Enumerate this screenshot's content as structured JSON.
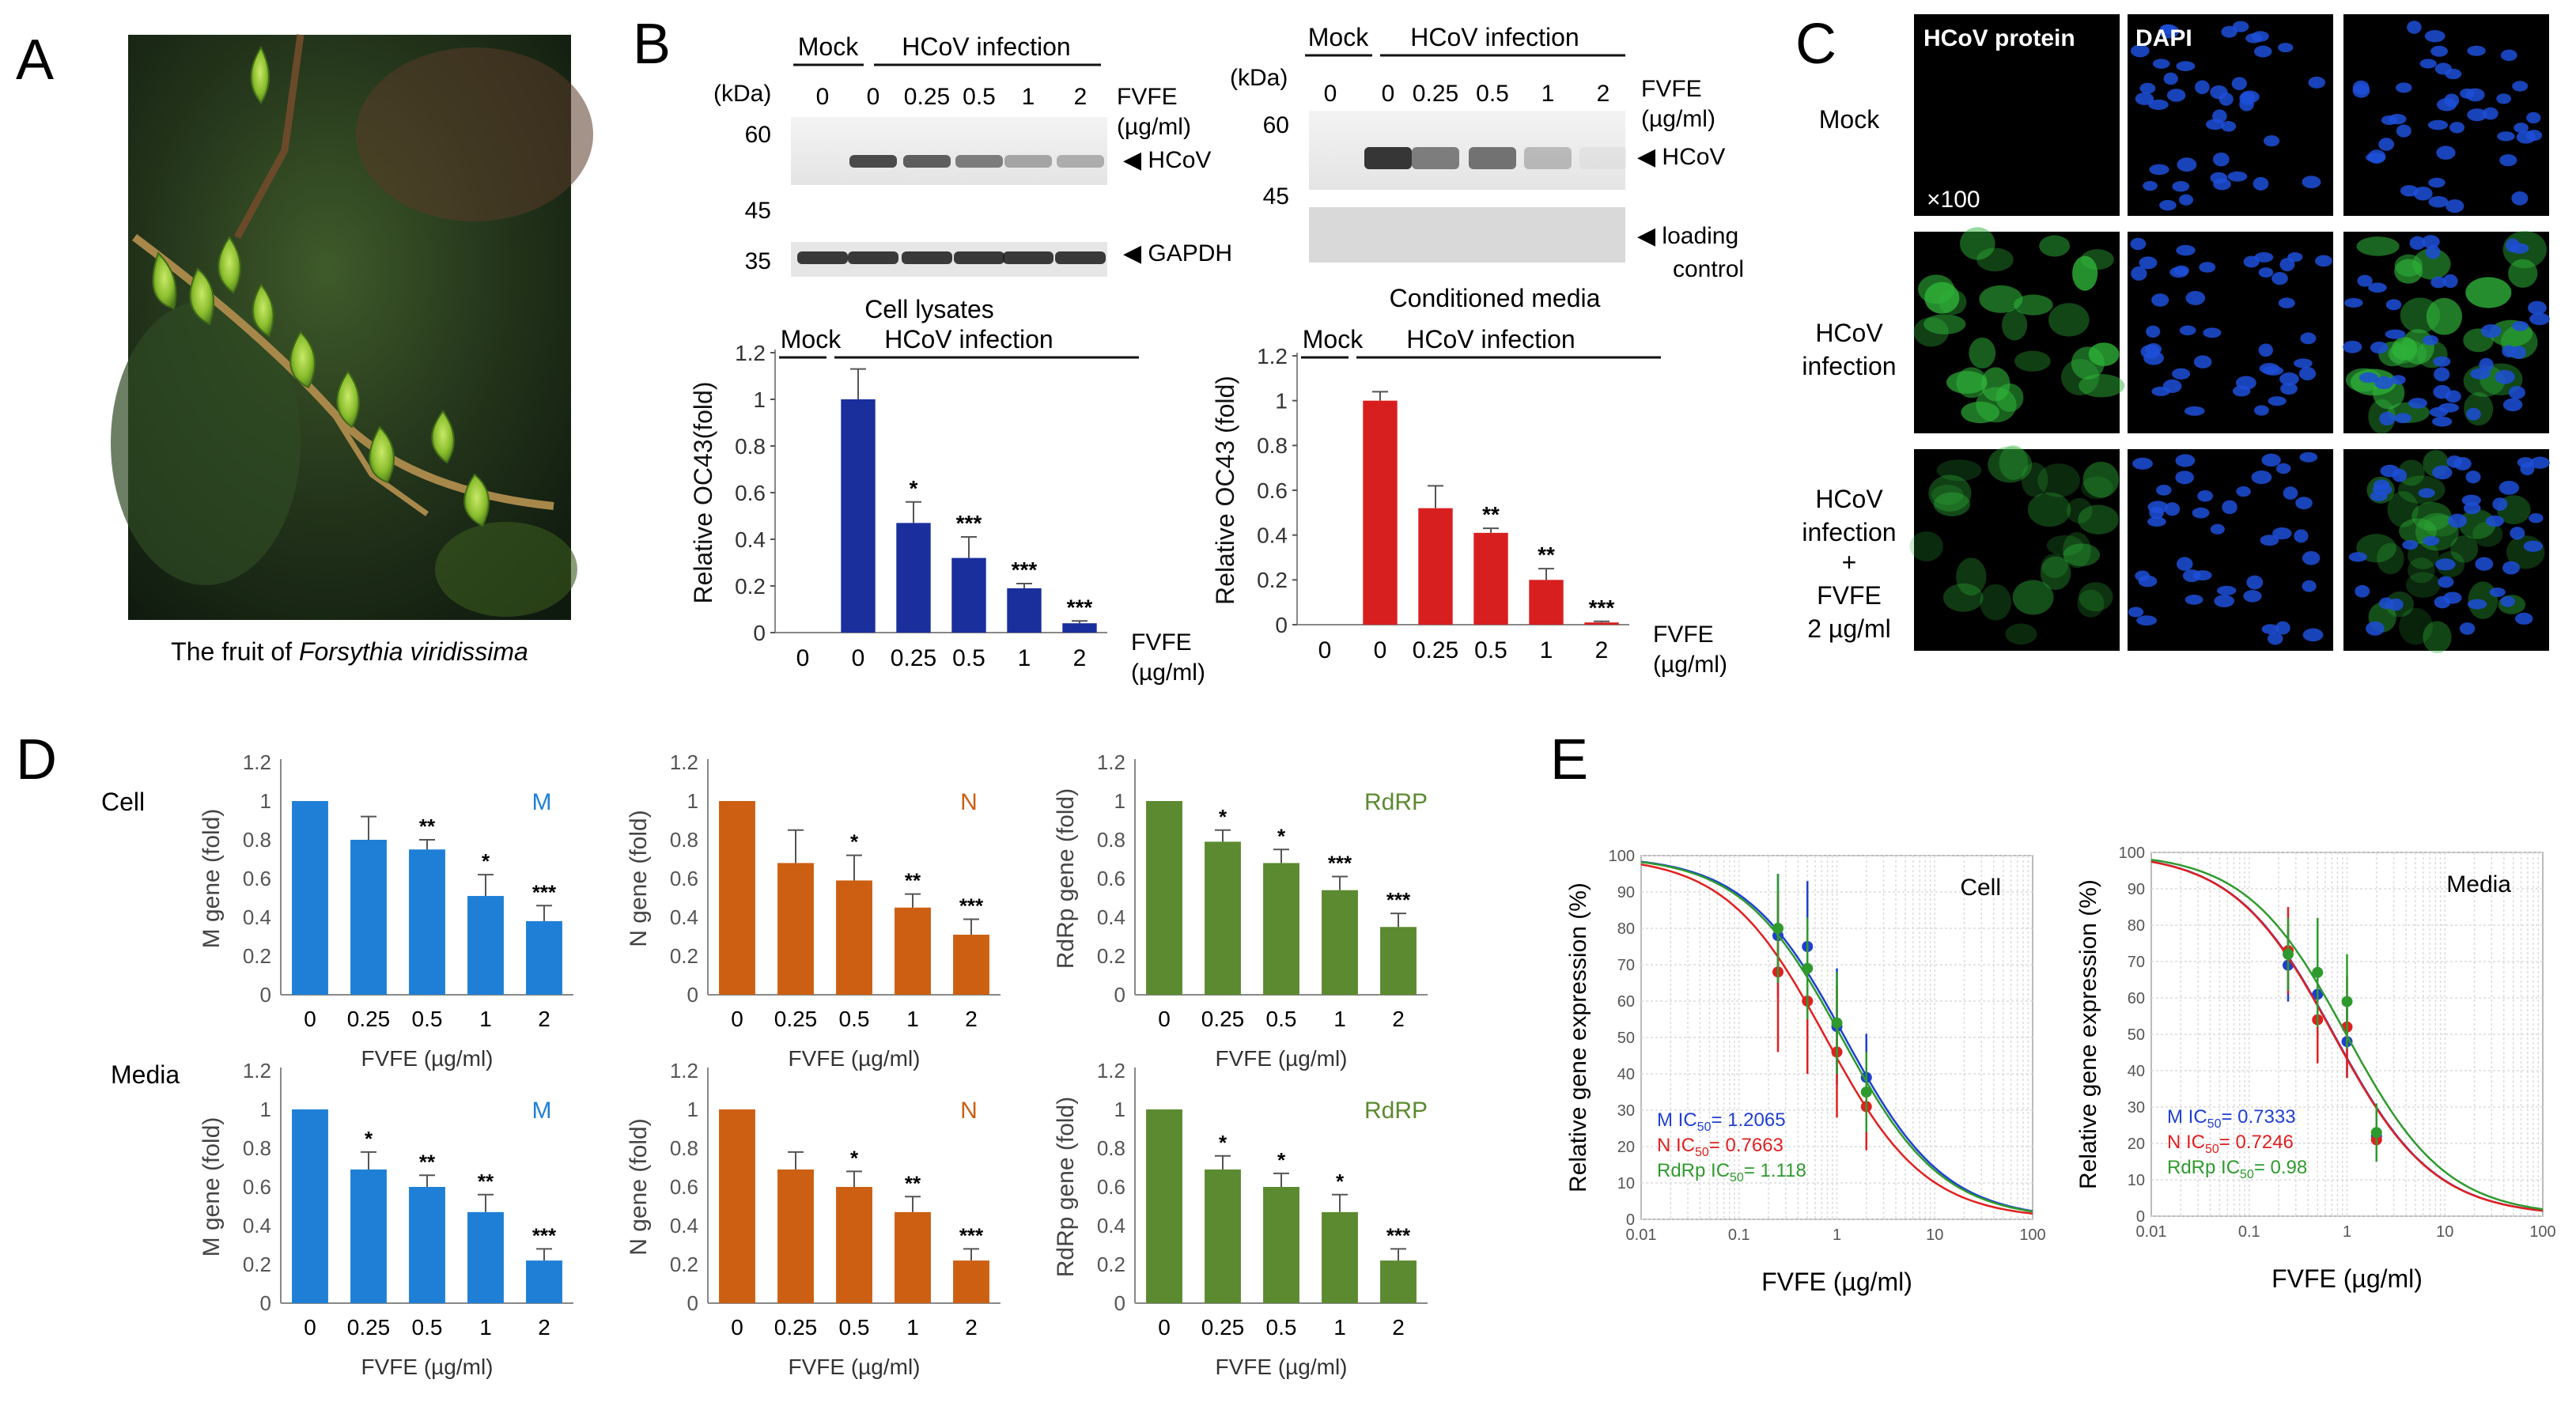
{
  "panel_letters": {
    "a": "A",
    "b": "B",
    "c": "C",
    "d": "D",
    "e": "E"
  },
  "panel_a": {
    "caption_prefix": "The fruit of ",
    "caption_species": "Forsythia viridissima"
  },
  "panel_b": {
    "mock": "Mock",
    "infection": "HCoV infection",
    "kda": "(kDa)",
    "fvfe": "FVFE",
    "unit": "(µg/ml)",
    "doses": [
      "0",
      "0",
      "0.25",
      "0.5",
      "1",
      "2"
    ],
    "blot_left": {
      "markers": [
        "60",
        "45",
        "35"
      ],
      "band_top": "◀ HCoV",
      "band_bottom": "◀ GAPDH",
      "caption": "Cell lysates"
    },
    "blot_right": {
      "markers": [
        "60",
        "45"
      ],
      "band_top": "◀ HCoV",
      "band_bottom_1": "◀ loading",
      "band_bottom_2": "control",
      "caption": "Conditioned media"
    }
  },
  "panel_c": {
    "col_headers": [
      "HCoV protein",
      "DAPI"
    ],
    "rows": [
      [
        "Mock"
      ],
      [
        "HCoV",
        "infection"
      ],
      [
        "HCoV",
        "infection",
        "+",
        "FVFE",
        "2 µg/ml"
      ]
    ],
    "magnification": "×100",
    "green": "#2fb43a",
    "blue": "#1d4fd8"
  },
  "chart_data": [
    {
      "id": "b_left",
      "type": "bar",
      "title": "",
      "ylabel": "Relative OC43(fold)",
      "xlabel": "FVFE",
      "xunit": "(µg/ml)",
      "categories": [
        "0",
        "0",
        "0.25",
        "0.5",
        "1",
        "2"
      ],
      "values": [
        0,
        1.0,
        0.47,
        0.32,
        0.19,
        0.04
      ],
      "errors": [
        0,
        0.13,
        0.09,
        0.09,
        0.02,
        0.01
      ],
      "significance": [
        "",
        "",
        "*",
        "***",
        "***",
        "***"
      ],
      "ylim": [
        0,
        1.2
      ],
      "yticks": [
        "0",
        "0.2",
        "0.4",
        "0.6",
        "0.8",
        "1",
        "1.2"
      ],
      "color": "#1a2f9c",
      "group_labels": {
        "mock": "Mock",
        "infection": "HCoV infection"
      }
    },
    {
      "id": "b_right",
      "type": "bar",
      "title": "",
      "ylabel": "Relative OC43 (fold)",
      "xlabel": "FVFE",
      "xunit": "(µg/ml)",
      "categories": [
        "0",
        "0",
        "0.25",
        "0.5",
        "1",
        "2"
      ],
      "values": [
        0,
        1.0,
        0.52,
        0.41,
        0.2,
        0.01
      ],
      "errors": [
        0,
        0.04,
        0.1,
        0.02,
        0.05,
        0.005
      ],
      "significance": [
        "",
        "",
        "",
        "**",
        "**",
        "***"
      ],
      "ylim": [
        0,
        1.2
      ],
      "yticks": [
        "0",
        "0.2",
        "0.4",
        "0.6",
        "0.8",
        "1",
        "1.2"
      ],
      "color": "#d81f1f",
      "group_labels": {
        "mock": "Mock",
        "infection": "HCoV infection"
      }
    },
    {
      "id": "d_cell_m",
      "type": "bar",
      "label": "M",
      "ylabel": "M gene (fold)",
      "xlabel": "FVFE (µg/ml)",
      "categories": [
        "0",
        "0.25",
        "0.5",
        "1",
        "2"
      ],
      "values": [
        1.0,
        0.8,
        0.75,
        0.51,
        0.38
      ],
      "errors": [
        0,
        0.12,
        0.05,
        0.11,
        0.08
      ],
      "significance": [
        "",
        "",
        "**",
        "*",
        "***"
      ],
      "ylim": [
        0,
        1.2
      ],
      "yticks": [
        "0",
        "0.2",
        "0.4",
        "0.6",
        "0.8",
        "1",
        "1.2"
      ],
      "color": "#1f7fd6"
    },
    {
      "id": "d_cell_n",
      "type": "bar",
      "label": "N",
      "ylabel": "N gene (fold)",
      "xlabel": "FVFE (µg/ml)",
      "categories": [
        "0",
        "0.25",
        "0.5",
        "1",
        "2"
      ],
      "values": [
        1.0,
        0.68,
        0.59,
        0.45,
        0.31
      ],
      "errors": [
        0,
        0.17,
        0.13,
        0.07,
        0.08
      ],
      "significance": [
        "",
        "",
        "*",
        "**",
        "***"
      ],
      "ylim": [
        0,
        1.2
      ],
      "yticks": [
        "0",
        "0.2",
        "0.4",
        "0.6",
        "0.8",
        "1",
        "1.2"
      ],
      "color": "#cc5f12"
    },
    {
      "id": "d_cell_r",
      "type": "bar",
      "label": "RdRP",
      "ylabel": "RdRp gene (fold)",
      "xlabel": "FVFE (µg/ml)",
      "categories": [
        "0",
        "0.25",
        "0.5",
        "1",
        "2"
      ],
      "values": [
        1.0,
        0.79,
        0.68,
        0.54,
        0.35
      ],
      "errors": [
        0,
        0.06,
        0.07,
        0.07,
        0.07
      ],
      "significance": [
        "",
        "*",
        "*",
        "***",
        "***"
      ],
      "ylim": [
        0,
        1.2
      ],
      "yticks": [
        "0",
        "0.2",
        "0.4",
        "0.6",
        "0.8",
        "1",
        "1.2"
      ],
      "color": "#5b8a30"
    },
    {
      "id": "d_media_m",
      "type": "bar",
      "label": "M",
      "ylabel": "M gene (fold)",
      "xlabel": "FVFE (µg/ml)",
      "categories": [
        "0",
        "0.25",
        "0.5",
        "1",
        "2"
      ],
      "values": [
        1.0,
        0.69,
        0.6,
        0.47,
        0.22
      ],
      "errors": [
        0,
        0.09,
        0.06,
        0.09,
        0.06
      ],
      "significance": [
        "",
        "*",
        "**",
        "**",
        "***"
      ],
      "ylim": [
        0,
        1.2
      ],
      "yticks": [
        "0",
        "0.2",
        "0.4",
        "0.6",
        "0.8",
        "1",
        "1.2"
      ],
      "color": "#1f7fd6"
    },
    {
      "id": "d_media_n",
      "type": "bar",
      "label": "N",
      "ylabel": "N gene (fold)",
      "xlabel": "FVFE (µg/ml)",
      "categories": [
        "0",
        "0.25",
        "0.5",
        "1",
        "2"
      ],
      "values": [
        1.0,
        0.69,
        0.6,
        0.47,
        0.22
      ],
      "errors": [
        0,
        0.09,
        0.08,
        0.08,
        0.06
      ],
      "significance": [
        "",
        "",
        "*",
        "**",
        "***"
      ],
      "ylim": [
        0,
        1.2
      ],
      "yticks": [
        "0",
        "0.2",
        "0.4",
        "0.6",
        "0.8",
        "1",
        "1.2"
      ],
      "color": "#cc5f12"
    },
    {
      "id": "d_media_r",
      "type": "bar",
      "label": "RdRP",
      "ylabel": "RdRp gene (fold)",
      "xlabel": "FVFE (µg/ml)",
      "categories": [
        "0",
        "0.25",
        "0.5",
        "1",
        "2"
      ],
      "values": [
        1.0,
        0.69,
        0.6,
        0.47,
        0.22
      ],
      "errors": [
        0,
        0.07,
        0.07,
        0.09,
        0.06
      ],
      "significance": [
        "",
        "*",
        "*",
        "*",
        "***"
      ],
      "ylim": [
        0,
        1.2
      ],
      "yticks": [
        "0",
        "0.2",
        "0.4",
        "0.6",
        "0.8",
        "1",
        "1.2"
      ],
      "color": "#5b8a30"
    },
    {
      "id": "e_cell",
      "type": "scatter",
      "title": "Cell",
      "xlabel": "FVFE (µg/ml)",
      "ylabel": "Relative gene expression (%)",
      "xscale": "log",
      "xlim": [
        0.01,
        100
      ],
      "ylim": [
        0,
        100
      ],
      "xticks": [
        "0.01",
        "0.1",
        "1",
        "10",
        "100"
      ],
      "yticks": [
        "0",
        "10",
        "20",
        "30",
        "40",
        "50",
        "60",
        "70",
        "80",
        "90",
        "100"
      ],
      "grid": true,
      "series": [
        {
          "name": "M",
          "ic50_label": "M IC",
          "ic50_value": "= 1.2065",
          "ic50": 1.2065,
          "color": "#1f3fd0",
          "x": [
            0.25,
            0.5,
            1,
            2
          ],
          "y": [
            78,
            75,
            53,
            39
          ],
          "err": [
            17,
            18,
            16,
            12
          ]
        },
        {
          "name": "N",
          "ic50_label": "N IC",
          "ic50_value": "= 0.7663",
          "ic50": 0.7663,
          "color": "#e02020",
          "x": [
            0.25,
            0.5,
            1,
            2
          ],
          "y": [
            68,
            60,
            46,
            31
          ],
          "err": [
            22,
            20,
            18,
            12
          ]
        },
        {
          "name": "RdRp",
          "ic50_label": "RdRp IC",
          "ic50_value": "= 1.118",
          "ic50": 1.118,
          "color": "#2e9a2e",
          "x": [
            0.25,
            0.5,
            1,
            2
          ],
          "y": [
            80,
            69,
            54,
            35
          ],
          "err": [
            15,
            14,
            14,
            11
          ]
        }
      ]
    },
    {
      "id": "e_media",
      "type": "scatter",
      "title": "Media",
      "xlabel": "FVFE (µg/ml)",
      "ylabel": "Relative gene expression (%)",
      "xscale": "log",
      "xlim": [
        0.01,
        100
      ],
      "ylim": [
        0,
        100
      ],
      "xticks": [
        "0.01",
        "0.1",
        "1",
        "10",
        "100"
      ],
      "yticks": [
        "0",
        "10",
        "20",
        "30",
        "40",
        "50",
        "60",
        "70",
        "80",
        "90",
        "100"
      ],
      "grid": true,
      "series": [
        {
          "name": "M",
          "ic50_label": "M IC",
          "ic50_value": "= 0.7333",
          "ic50": 0.7333,
          "color": "#1f3fd0",
          "x": [
            0.25,
            0.5,
            1,
            2
          ],
          "y": [
            69,
            61,
            48,
            22
          ],
          "err": [
            10,
            12,
            10,
            5
          ]
        },
        {
          "name": "N",
          "ic50_label": "N IC",
          "ic50_value": "= 0.7246",
          "ic50": 0.7246,
          "color": "#e02020",
          "x": [
            0.25,
            0.5,
            1,
            2
          ],
          "y": [
            73,
            54,
            52,
            21
          ],
          "err": [
            12,
            12,
            14,
            6
          ]
        },
        {
          "name": "RdRp",
          "ic50_label": "RdRp IC",
          "ic50_value": "= 0.98",
          "ic50": 0.98,
          "color": "#2e9a2e",
          "x": [
            0.25,
            0.5,
            1,
            2
          ],
          "y": [
            72,
            67,
            59,
            23
          ],
          "err": [
            10,
            15,
            13,
            8
          ]
        }
      ]
    }
  ],
  "panel_d_rows": {
    "cell": "Cell",
    "media": "Media"
  },
  "ic50_sub": "50"
}
